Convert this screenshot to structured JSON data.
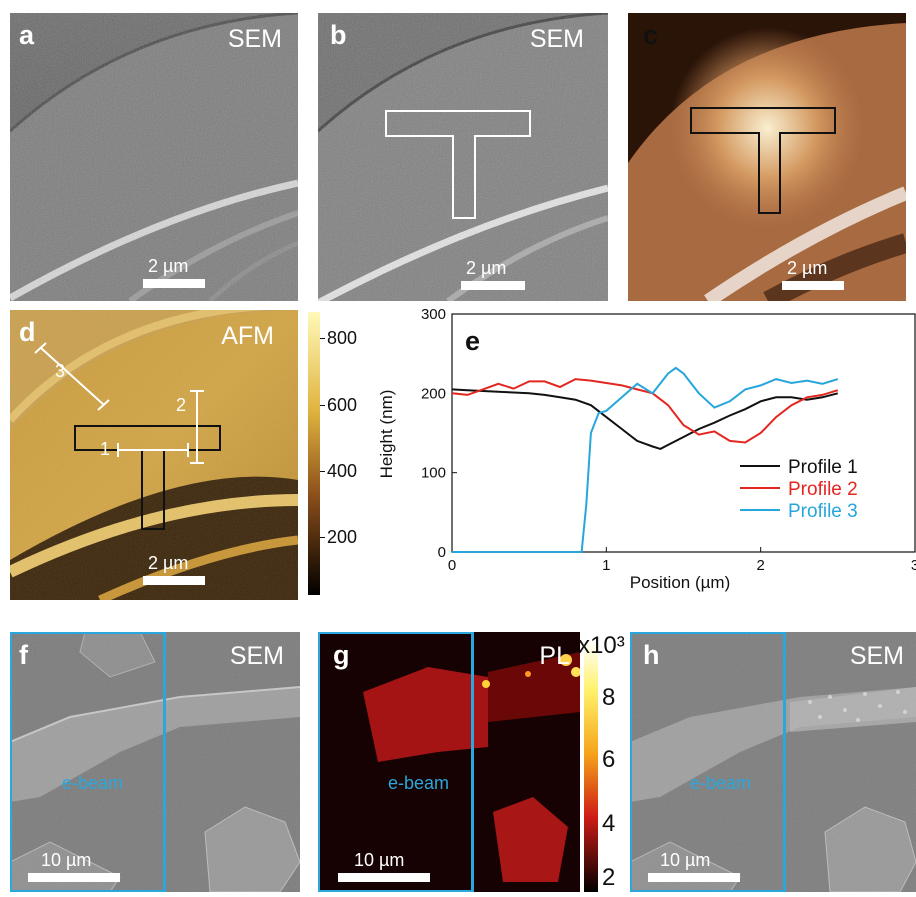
{
  "panels": {
    "a": {
      "label": "a",
      "tag": "SEM",
      "scale": "2 µm"
    },
    "b": {
      "label": "b",
      "tag": "SEM",
      "scale": "2 µm"
    },
    "c": {
      "label": "c",
      "scale": "2 µm"
    },
    "d": {
      "label": "d",
      "tag": "AFM",
      "scale": "2 µm",
      "markers": [
        "1",
        "2",
        "3"
      ],
      "colorbar_ticks": [
        "800",
        "600",
        "400",
        "200"
      ]
    },
    "e": {
      "label": "e"
    },
    "f": {
      "label": "f",
      "tag": "SEM",
      "scale": "10 µm",
      "region": "e-beam"
    },
    "g": {
      "label": "g",
      "tag": "PL",
      "scale": "10 µm",
      "region": "e-beam",
      "colorbar_exp": "x10³",
      "colorbar_ticks": [
        "8",
        "6",
        "4",
        "2"
      ]
    },
    "h": {
      "label": "h",
      "tag": "SEM",
      "scale": "10 µm",
      "region": "e-beam"
    }
  },
  "colors": {
    "profile1": "#111111",
    "profile2": "#e3261f",
    "profile3": "#27a6dc",
    "ebeam_box": "#2aa7dc"
  },
  "chart_data": {
    "type": "line",
    "xlabel": "Position (µm)",
    "ylabel": "Height (nm)",
    "xlim": [
      0,
      3
    ],
    "ylim": [
      0,
      300
    ],
    "xticks": [
      "0",
      "1",
      "2",
      "3"
    ],
    "yticks": [
      "0",
      "100",
      "200",
      "300"
    ],
    "legend_position": "bottom-right",
    "series": [
      {
        "name": "Profile 1",
        "x": [
          0,
          0.1,
          0.2,
          0.3,
          0.4,
          0.5,
          0.6,
          0.7,
          0.8,
          0.9,
          1.0,
          1.1,
          1.2,
          1.3,
          1.35,
          1.4,
          1.5,
          1.6,
          1.7,
          1.8,
          1.9,
          2.0,
          2.1,
          2.2,
          2.3,
          2.4,
          2.5
        ],
        "y": [
          205,
          204,
          203,
          202,
          201,
          200,
          198,
          195,
          192,
          185,
          170,
          155,
          140,
          133,
          130,
          135,
          145,
          155,
          163,
          172,
          180,
          190,
          195,
          195,
          192,
          195,
          200
        ]
      },
      {
        "name": "Profile 2",
        "x": [
          0,
          0.1,
          0.2,
          0.3,
          0.4,
          0.5,
          0.6,
          0.7,
          0.8,
          0.9,
          1.0,
          1.1,
          1.2,
          1.3,
          1.4,
          1.5,
          1.6,
          1.7,
          1.8,
          1.9,
          2.0,
          2.1,
          2.2,
          2.3,
          2.4,
          2.5
        ],
        "y": [
          200,
          198,
          205,
          212,
          206,
          215,
          215,
          208,
          218,
          216,
          213,
          210,
          205,
          200,
          185,
          160,
          148,
          152,
          140,
          138,
          150,
          170,
          185,
          195,
          198,
          204
        ]
      },
      {
        "name": "Profile 3",
        "x": [
          0,
          0.1,
          0.2,
          0.3,
          0.4,
          0.5,
          0.6,
          0.7,
          0.8,
          0.84,
          0.87,
          0.9,
          0.95,
          1.0,
          1.1,
          1.2,
          1.3,
          1.4,
          1.45,
          1.5,
          1.6,
          1.7,
          1.8,
          1.9,
          2.0,
          2.1,
          2.2,
          2.3,
          2.4,
          2.5
        ],
        "y": [
          0,
          0,
          0,
          0,
          0,
          0,
          0,
          0,
          0,
          0,
          60,
          150,
          175,
          178,
          195,
          212,
          200,
          225,
          232,
          225,
          200,
          182,
          190,
          205,
          210,
          218,
          213,
          216,
          212,
          218
        ]
      }
    ]
  }
}
